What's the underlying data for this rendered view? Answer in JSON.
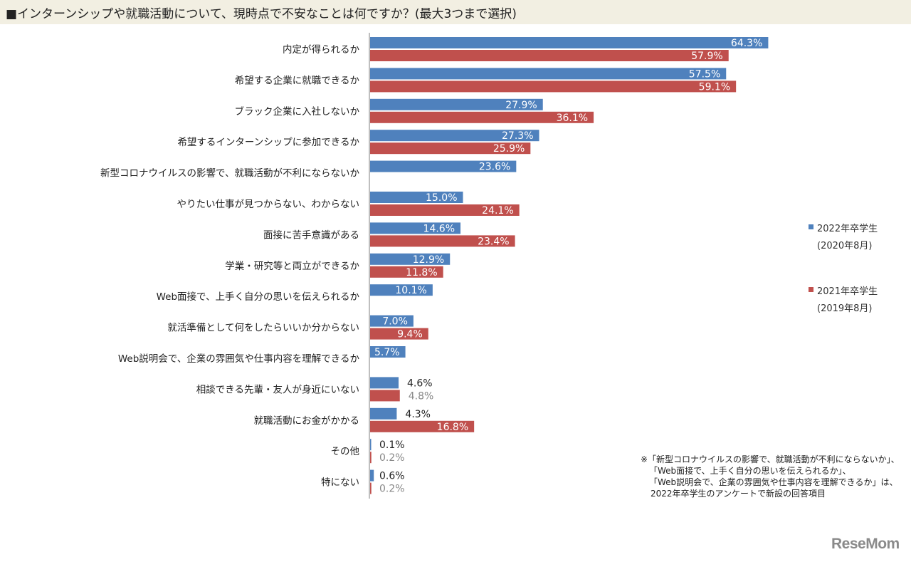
{
  "chart_data": {
    "type": "bar",
    "orientation": "horizontal",
    "title": "■インターンシップや就職活動について、現時点で不安なことは何ですか？(最大3つまで選択)",
    "categories": [
      "内定が得られるか",
      "希望する企業に就職できるか",
      "ブラック企業に入社しないか",
      "希望するインターンシップに参加できるか",
      "新型コロナウイルスの影響で、就職活動が不利にならないか",
      "やりたい仕事が見つからない、わからない",
      "面接に苦手意識がある",
      "学業・研究等と両立ができるか",
      "Web面接で、上手く自分の思いを伝えられるか",
      "就活準備として何をしたらいいか分からない",
      "Web説明会で、企業の雰囲気や仕事内容を理解できるか",
      "相談できる先輩・友人が身近にいない",
      "就職活動にお金がかかる",
      "その他",
      "特にない"
    ],
    "series": [
      {
        "name": "2022年卒学生",
        "sub": "(2020年8月)",
        "color": "#4f81bd",
        "values": [
          64.3,
          57.5,
          27.9,
          27.3,
          23.6,
          15.0,
          14.6,
          12.9,
          10.1,
          7.0,
          5.7,
          4.6,
          4.3,
          0.1,
          0.6
        ],
        "labels": [
          "64.3%",
          "57.5%",
          "27.9%",
          "27.3%",
          "23.6%",
          "15.0%",
          "14.6%",
          "12.9%",
          "10.1%",
          "7.0%",
          "5.7%",
          "4.6%",
          "4.3%",
          "0.1%",
          "0.6%"
        ]
      },
      {
        "name": "2021年卒学生",
        "sub": "(2019年8月)",
        "color": "#c0504d",
        "values": [
          57.9,
          59.1,
          36.1,
          25.9,
          null,
          24.1,
          23.4,
          11.8,
          null,
          9.4,
          null,
          4.8,
          16.8,
          0.2,
          0.2
        ],
        "labels": [
          "57.9%",
          "59.1%",
          "36.1%",
          "25.9%",
          null,
          "24.1%",
          "23.4%",
          "11.8%",
          null,
          "9.4%",
          null,
          "4.8%",
          "16.8%",
          "0.2%",
          "0.2%"
        ]
      }
    ],
    "xlim": [
      0,
      100
    ],
    "legend_position": "right"
  },
  "footnote": [
    "※「新型コロナウイルスの影響で、就職活動が不利にならないか」、",
    "「Web面接で、上手く自分の思いを伝えられるか」、",
    "「Web説明会で、企業の雰囲気や仕事内容を理解できるか」は、",
    "2022年卒学生のアンケートで新設の回答項目"
  ],
  "logo": "ReseMom"
}
